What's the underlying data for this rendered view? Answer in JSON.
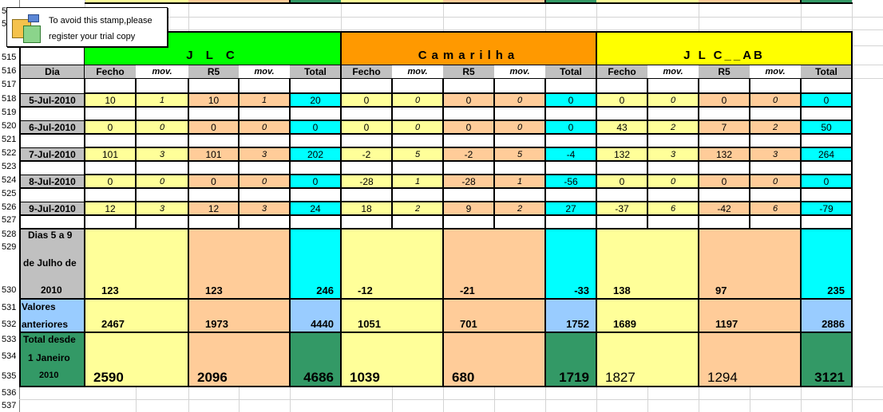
{
  "stamp": {
    "line1": "To avoid this stamp,please",
    "line2": "register your trial copy"
  },
  "rows": [
    "515",
    "516",
    "517",
    "518",
    "519",
    "520",
    "521",
    "522",
    "523",
    "524",
    "525",
    "526",
    "527",
    "528",
    "529",
    "530",
    "531",
    "532",
    "533",
    "534",
    "535",
    "536",
    "537"
  ],
  "rows_top": [
    "5",
    "5"
  ],
  "groups": [
    "J L C",
    "Camarilha",
    "J L C__AB"
  ],
  "headers": {
    "dia": "Dia",
    "fecho": "Fecho",
    "mov": "mov.",
    "r5": "R5",
    "total": "Total"
  },
  "days": [
    {
      "date": "5-Jul-2010",
      "values": [
        "10",
        "1",
        "10",
        "1",
        "20",
        "0",
        "0",
        "0",
        "0",
        "0",
        "0",
        "0",
        "0",
        "0",
        "0"
      ]
    },
    {
      "date": "6-Jul-2010",
      "values": [
        "0",
        "0",
        "0",
        "0",
        "0",
        "0",
        "0",
        "0",
        "0",
        "0",
        "43",
        "2",
        "7",
        "2",
        "50"
      ]
    },
    {
      "date": "7-Jul-2010",
      "values": [
        "101",
        "3",
        "101",
        "3",
        "202",
        "-2",
        "5",
        "-2",
        "5",
        "-4",
        "132",
        "3",
        "132",
        "3",
        "264"
      ]
    },
    {
      "date": "8-Jul-2010",
      "values": [
        "0",
        "0",
        "0",
        "0",
        "0",
        "-28",
        "1",
        "-28",
        "1",
        "-56",
        "0",
        "0",
        "0",
        "0",
        "0"
      ]
    },
    {
      "date": "9-Jul-2010",
      "values": [
        "12",
        "3",
        "12",
        "3",
        "24",
        "18",
        "2",
        "9",
        "2",
        "27",
        "-37",
        "6",
        "-42",
        "6",
        "-79"
      ]
    }
  ],
  "summary": {
    "period_label": [
      "Dias 5 a 9",
      "de Julho de",
      "2010"
    ],
    "period_values": [
      "123",
      "123",
      "246",
      "-12",
      "-21",
      "-33",
      "138",
      "97",
      "235"
    ],
    "prev_label": [
      "Valores",
      "anteriores"
    ],
    "prev_values": [
      "2467",
      "1973",
      "4440",
      "1051",
      "701",
      "1752",
      "1689",
      "1197",
      "2886"
    ],
    "total_label": [
      "Total desde",
      "1 Janeiro",
      "2010"
    ],
    "total_values": [
      "2590",
      "2096",
      "4686",
      "1039",
      "680",
      "1719",
      "1827",
      "1294",
      "3121"
    ]
  },
  "colors": {
    "green": "#00ff00",
    "orange": "#ff9900",
    "yellow": "#ffff00",
    "cyan": "#00ffff",
    "light_yellow": "#ffff99",
    "peach": "#ffcc99",
    "light_blue": "#99ccff",
    "sea_green": "#339966",
    "gray": "#c0c0c0"
  }
}
